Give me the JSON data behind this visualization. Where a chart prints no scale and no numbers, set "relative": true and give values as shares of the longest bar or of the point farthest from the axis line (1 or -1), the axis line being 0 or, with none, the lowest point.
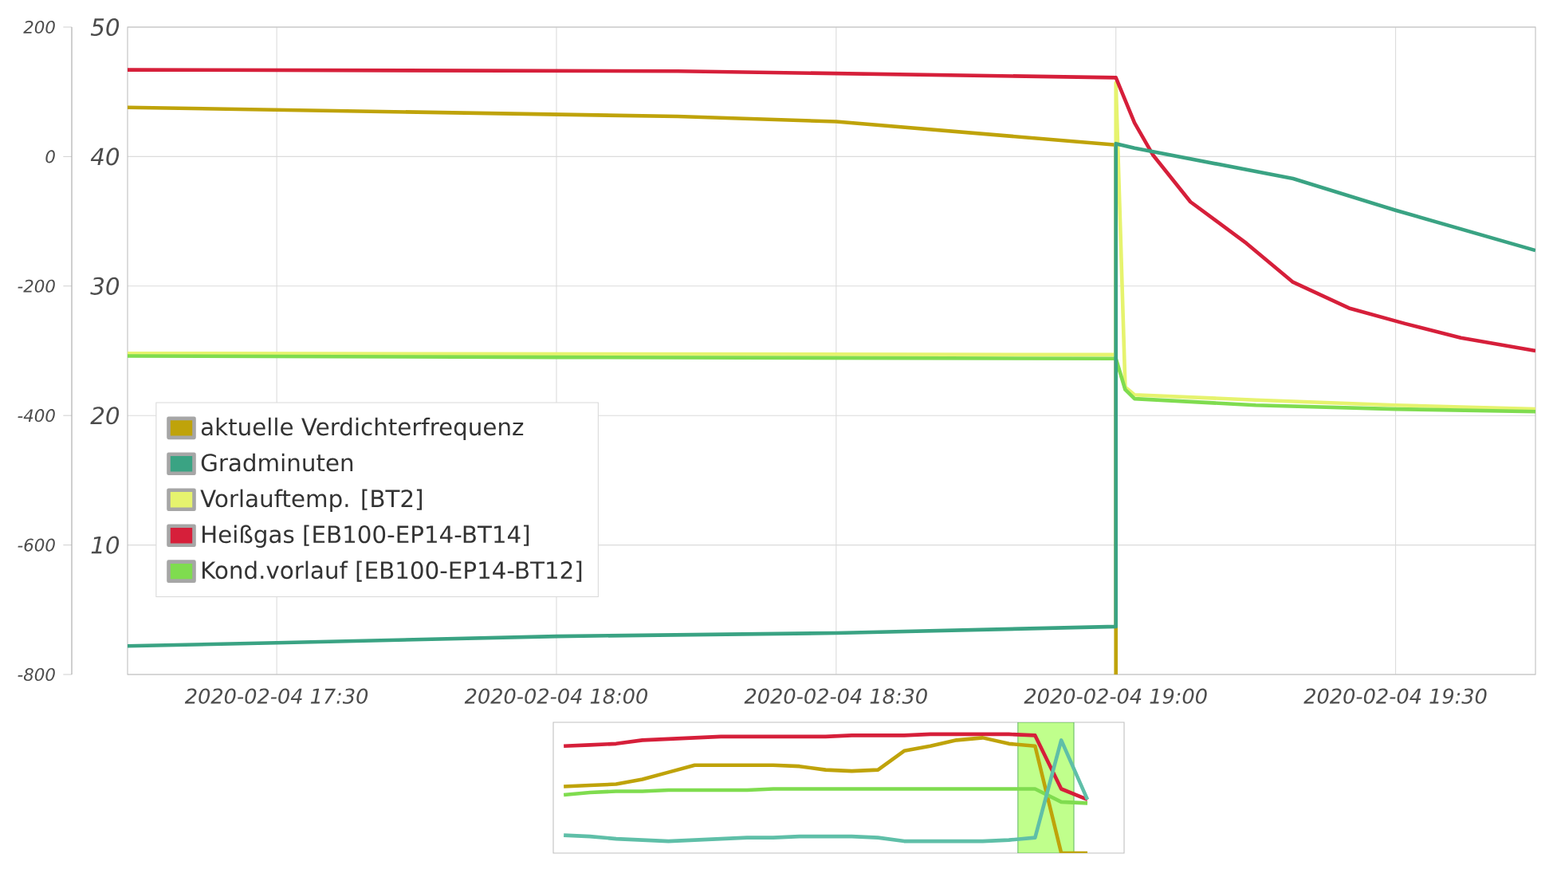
{
  "chart_data": [
    {
      "type": "line",
      "xlim": [
        "2020-02-04T17:14",
        "2020-02-04T19:45"
      ],
      "xticks": [
        {
          "value": "2020-02-04T17:30",
          "label": "2020-02-04 17:30"
        },
        {
          "value": "2020-02-04T18:00",
          "label": "2020-02-04 18:00"
        },
        {
          "value": "2020-02-04T18:30",
          "label": "2020-02-04 18:30"
        },
        {
          "value": "2020-02-04T19:00",
          "label": "2020-02-04 19:00"
        },
        {
          "value": "2020-02-04T19:30",
          "label": "2020-02-04 19:30"
        }
      ],
      "ylim": [
        0,
        50
      ],
      "yticks": [
        {
          "value": 0,
          "label": null
        },
        10,
        20,
        30,
        40,
        50
      ],
      "y2lim": [
        -800,
        200
      ],
      "y2ticks": [
        -800,
        -600,
        -400,
        -200,
        0,
        200
      ],
      "grid": true,
      "legend": "left",
      "marker": "none",
      "series": [
        {
          "name": "aktuelle Verdichterfrequenz",
          "color": "#bfa30a",
          "x": [
            "2020-02-04T17:14",
            "2020-02-04T18:13",
            "2020-02-04T18:30",
            "2020-02-04T19:00",
            "2020-02-04T19:00"
          ],
          "values": [
            43.8,
            43.1,
            42.7,
            40.9,
            0
          ]
        },
        {
          "name": "Gradminuten",
          "color": "#3aa383",
          "axis": "y2",
          "x": [
            "2020-02-04T17:14",
            "2020-02-04T17:30",
            "2020-02-04T18:00",
            "2020-02-04T18:30",
            "2020-02-04T19:00",
            "2020-02-04T19:00",
            "2020-02-04T19:02",
            "2020-02-04T19:19",
            "2020-02-04T19:30",
            "2020-02-04T19:45"
          ],
          "values": [
            -756,
            -751,
            -741,
            -736,
            -726,
            20,
            13,
            -34,
            -83,
            -145
          ]
        },
        {
          "name": "Vorlauftemp. [BT2]",
          "color": "#e6f36e",
          "x": [
            "2020-02-04T17:14",
            "2020-02-04T19:00",
            "2020-02-04T19:00",
            "2020-02-04T19:01",
            "2020-02-04T19:02",
            "2020-02-04T19:15",
            "2020-02-04T19:30",
            "2020-02-04T19:45"
          ],
          "values": [
            24.8,
            24.7,
            45.7,
            22.2,
            21.6,
            21.2,
            20.8,
            20.5
          ]
        },
        {
          "name": "Heißgas [EB100-EP14-BT14]",
          "color": "#d61f3a",
          "x": [
            "2020-02-04T17:14",
            "2020-02-04T18:13",
            "2020-02-04T19:00",
            "2020-02-04T19:02",
            "2020-02-04T19:04",
            "2020-02-04T19:08",
            "2020-02-04T19:14",
            "2020-02-04T19:19",
            "2020-02-04T19:25",
            "2020-02-04T19:31",
            "2020-02-04T19:37",
            "2020-02-04T19:45"
          ],
          "values": [
            46.7,
            46.6,
            46.1,
            42.6,
            40.1,
            36.5,
            33.3,
            30.3,
            28.3,
            27.1,
            26.0,
            25.0
          ]
        },
        {
          "name": "Kond.vorlauf [EB100-EP14-BT12]",
          "color": "#7fdc4f",
          "x": [
            "2020-02-04T17:14",
            "2020-02-04T18:00",
            "2020-02-04T19:00",
            "2020-02-04T19:01",
            "2020-02-04T19:02",
            "2020-02-04T19:15",
            "2020-02-04T19:30",
            "2020-02-04T19:45"
          ],
          "values": [
            24.6,
            24.5,
            24.4,
            22.0,
            21.3,
            20.8,
            20.5,
            20.3
          ]
        }
      ]
    },
    {
      "type": "line",
      "relative": true,
      "categories": [
        null,
        null,
        null,
        null,
        null,
        null,
        null,
        null,
        null,
        null,
        null,
        null,
        null,
        null,
        null,
        null,
        null,
        null,
        null,
        null,
        null,
        null
      ],
      "series": [
        {
          "color": "#d61f3a",
          "values": [
            0.9,
            0.91,
            0.92,
            0.95,
            0.96,
            0.97,
            0.98,
            0.98,
            0.98,
            0.98,
            0.98,
            0.99,
            0.99,
            0.99,
            1.0,
            1.0,
            1.0,
            1.0,
            0.99,
            0.54,
            0.45,
            null
          ]
        },
        {
          "color": "#bfa30a",
          "values": [
            0.56,
            0.57,
            0.58,
            0.62,
            0.68,
            0.74,
            0.74,
            0.74,
            0.74,
            0.73,
            0.7,
            0.69,
            0.7,
            0.86,
            0.9,
            0.95,
            0.97,
            0.92,
            0.9,
            0.0,
            0.0,
            null
          ]
        },
        {
          "color": "#7fdc4f",
          "values": [
            0.49,
            0.51,
            0.52,
            0.52,
            0.53,
            0.53,
            0.53,
            0.53,
            0.54,
            0.54,
            0.54,
            0.54,
            0.54,
            0.54,
            0.54,
            0.54,
            0.54,
            0.54,
            0.54,
            0.43,
            0.42,
            null
          ]
        },
        {
          "color": "#5fbfa8",
          "values": [
            0.15,
            0.14,
            0.12,
            0.11,
            0.1,
            0.11,
            0.12,
            0.13,
            0.13,
            0.14,
            0.14,
            0.14,
            0.13,
            0.1,
            0.1,
            0.1,
            0.1,
            0.11,
            0.13,
            0.95,
            0.45,
            null
          ]
        }
      ]
    }
  ]
}
